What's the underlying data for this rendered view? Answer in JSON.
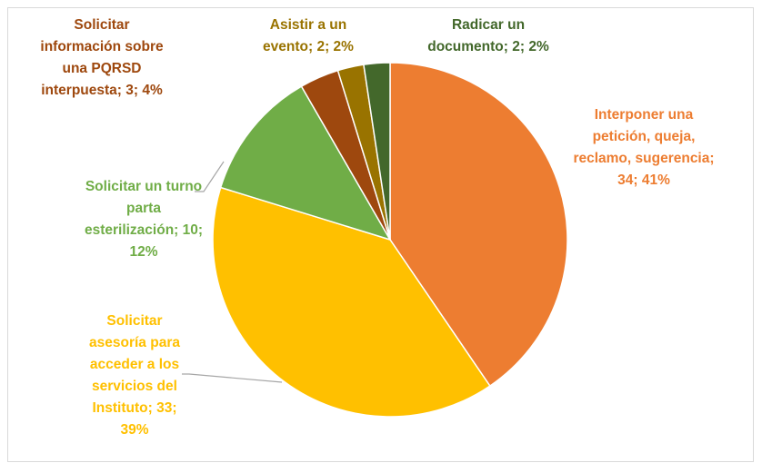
{
  "chart_data": {
    "type": "pie",
    "value_labels": [
      "Interponer una petición, queja, reclamo, sugerencia; 34; 41%",
      "Solicitar asesoría para acceder a los servicios del Instituto; 33; 39%",
      "Solicitar un turno parta esterilización; 10; 12%",
      "Solicitar información sobre una PQRSD interpuesta; 3; 4%",
      "Asistir a un evento; 2; 2%",
      "Radicar un documento; 2; 2%"
    ],
    "values": [
      34,
      33,
      10,
      3,
      2,
      2
    ],
    "colors": [
      "#ED7D31",
      "#FFC000",
      "#70AD47",
      "#9E480E",
      "#997300",
      "#43682B"
    ]
  }
}
